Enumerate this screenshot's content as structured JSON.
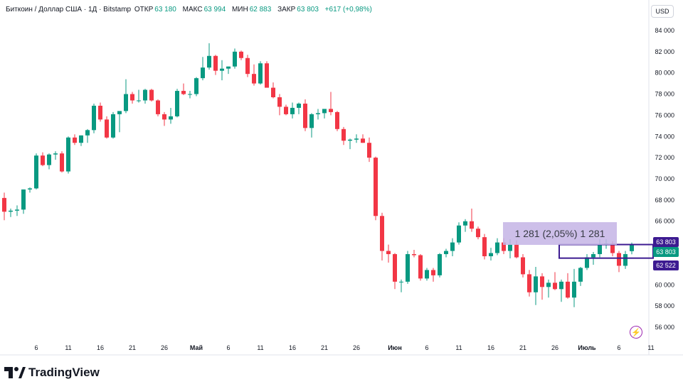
{
  "header": {
    "symbol": "Биткоин / Доллар США · 1Д · Bitstamp",
    "open_label": "ОТКР",
    "open_value": "63 180",
    "high_label": "МАКС",
    "high_value": "63 994",
    "low_label": "МИН",
    "low_value": "62 883",
    "close_label": "ЗАКР",
    "close_value": "63 803",
    "change": "+617 (+0,98%)"
  },
  "currency_button": "USD",
  "price_tags": {
    "last_price": "63 803",
    "last_price_2": "63 803",
    "range_low": "62 522"
  },
  "measure_label": "1 281 (2,05%) 1 281",
  "logo_text": "TradingView",
  "colors": {
    "up": "#089981",
    "down": "#f23645",
    "measure": "#c5b5e6",
    "range": "#3d1b91",
    "tag": "#3d1b91"
  },
  "icons": [
    "lightning-icon",
    "tradingview-logo-icon"
  ],
  "chart_data": {
    "type": "candlestick",
    "ylim": [
      55000,
      85000
    ],
    "y_ticks": [
      56000,
      58000,
      60000,
      62000,
      64000,
      66000,
      68000,
      70000,
      72000,
      74000,
      76000,
      78000,
      80000,
      82000,
      84000
    ],
    "y_tick_labels": [
      "56 000",
      "58 000",
      "60 000",
      "62 000",
      "64 000",
      "66 000",
      "68 000",
      "70 000",
      "72 000",
      "74 000",
      "76 000",
      "78 000",
      "80 000",
      "82 000",
      "84 000"
    ],
    "x_ticks": [
      {
        "day": 5,
        "label": "6"
      },
      {
        "day": 10,
        "label": "11"
      },
      {
        "day": 15,
        "label": "16"
      },
      {
        "day": 20,
        "label": "21"
      },
      {
        "day": 25,
        "label": "26"
      },
      {
        "day": 30,
        "label": "Май"
      },
      {
        "day": 35,
        "label": "6"
      },
      {
        "day": 40,
        "label": "11"
      },
      {
        "day": 45,
        "label": "16"
      },
      {
        "day": 50,
        "label": "21"
      },
      {
        "day": 55,
        "label": "26"
      },
      {
        "day": 61,
        "label": "Июн"
      },
      {
        "day": 66,
        "label": "6"
      },
      {
        "day": 71,
        "label": "11"
      },
      {
        "day": 76,
        "label": "16"
      },
      {
        "day": 81,
        "label": "21"
      },
      {
        "day": 86,
        "label": "26"
      },
      {
        "day": 91,
        "label": "Июль"
      },
      {
        "day": 96,
        "label": "6"
      },
      {
        "day": 101,
        "label": "11"
      }
    ],
    "candles": [
      {
        "o": 68200,
        "h": 68700,
        "l": 66100,
        "c": 66900
      },
      {
        "o": 66900,
        "h": 67200,
        "l": 66400,
        "c": 67000
      },
      {
        "o": 67000,
        "h": 67500,
        "l": 66500,
        "c": 67100
      },
      {
        "o": 67100,
        "h": 69000,
        "l": 66700,
        "c": 69000
      },
      {
        "o": 69000,
        "h": 69200,
        "l": 68700,
        "c": 69100
      },
      {
        "o": 69100,
        "h": 72400,
        "l": 69000,
        "c": 72200
      },
      {
        "o": 72200,
        "h": 72500,
        "l": 71200,
        "c": 71300
      },
      {
        "o": 71300,
        "h": 72400,
        "l": 70900,
        "c": 72300
      },
      {
        "o": 72300,
        "h": 72600,
        "l": 71800,
        "c": 72400
      },
      {
        "o": 72400,
        "h": 72600,
        "l": 70600,
        "c": 70700
      },
      {
        "o": 70700,
        "h": 74000,
        "l": 70500,
        "c": 73900
      },
      {
        "o": 73900,
        "h": 74200,
        "l": 73200,
        "c": 73400
      },
      {
        "o": 73400,
        "h": 74100,
        "l": 73100,
        "c": 74100
      },
      {
        "o": 74100,
        "h": 74700,
        "l": 73400,
        "c": 74600
      },
      {
        "o": 74600,
        "h": 77100,
        "l": 74300,
        "c": 76900
      },
      {
        "o": 76900,
        "h": 77200,
        "l": 75400,
        "c": 75600
      },
      {
        "o": 75600,
        "h": 75900,
        "l": 73800,
        "c": 73900
      },
      {
        "o": 73900,
        "h": 76300,
        "l": 73800,
        "c": 76100
      },
      {
        "o": 76100,
        "h": 76300,
        "l": 74400,
        "c": 76400
      },
      {
        "o": 76400,
        "h": 79400,
        "l": 76200,
        "c": 78000
      },
      {
        "o": 78000,
        "h": 78200,
        "l": 77100,
        "c": 77400
      },
      {
        "o": 77400,
        "h": 78400,
        "l": 77200,
        "c": 77400
      },
      {
        "o": 77400,
        "h": 78500,
        "l": 77100,
        "c": 78400
      },
      {
        "o": 78400,
        "h": 78500,
        "l": 77300,
        "c": 77400
      },
      {
        "o": 77400,
        "h": 77500,
        "l": 75900,
        "c": 76100
      },
      {
        "o": 76100,
        "h": 76300,
        "l": 75000,
        "c": 75600
      },
      {
        "o": 75600,
        "h": 76700,
        "l": 75200,
        "c": 75900
      },
      {
        "o": 75900,
        "h": 78500,
        "l": 75800,
        "c": 78300
      },
      {
        "o": 78300,
        "h": 79000,
        "l": 77900,
        "c": 78000
      },
      {
        "o": 78000,
        "h": 78300,
        "l": 77600,
        "c": 78000
      },
      {
        "o": 78000,
        "h": 79600,
        "l": 77800,
        "c": 79500
      },
      {
        "o": 79500,
        "h": 81500,
        "l": 79300,
        "c": 80500
      },
      {
        "o": 80500,
        "h": 82800,
        "l": 80300,
        "c": 81600
      },
      {
        "o": 81600,
        "h": 81700,
        "l": 79800,
        "c": 80200
      },
      {
        "o": 80200,
        "h": 81200,
        "l": 79300,
        "c": 80400
      },
      {
        "o": 80400,
        "h": 80600,
        "l": 79900,
        "c": 80600
      },
      {
        "o": 80600,
        "h": 82300,
        "l": 80400,
        "c": 82000
      },
      {
        "o": 82000,
        "h": 82100,
        "l": 81200,
        "c": 81400
      },
      {
        "o": 81400,
        "h": 81700,
        "l": 79600,
        "c": 79900
      },
      {
        "o": 79900,
        "h": 80800,
        "l": 78800,
        "c": 79000
      },
      {
        "o": 79000,
        "h": 81100,
        "l": 78900,
        "c": 80900
      },
      {
        "o": 80900,
        "h": 81100,
        "l": 78800,
        "c": 78600
      },
      {
        "o": 78600,
        "h": 79100,
        "l": 77600,
        "c": 77700
      },
      {
        "o": 77700,
        "h": 78000,
        "l": 76000,
        "c": 76800
      },
      {
        "o": 76800,
        "h": 77000,
        "l": 76000,
        "c": 76100
      },
      {
        "o": 76100,
        "h": 77200,
        "l": 75700,
        "c": 76700
      },
      {
        "o": 76700,
        "h": 77200,
        "l": 76100,
        "c": 77100
      },
      {
        "o": 77100,
        "h": 77500,
        "l": 74500,
        "c": 74800
      },
      {
        "o": 74800,
        "h": 76200,
        "l": 73900,
        "c": 76100
      },
      {
        "o": 76100,
        "h": 76600,
        "l": 75600,
        "c": 76200
      },
      {
        "o": 76200,
        "h": 76600,
        "l": 75700,
        "c": 76600
      },
      {
        "o": 76600,
        "h": 78200,
        "l": 76000,
        "c": 76300
      },
      {
        "o": 76300,
        "h": 76400,
        "l": 74500,
        "c": 74700
      },
      {
        "o": 74700,
        "h": 74900,
        "l": 73200,
        "c": 73600
      },
      {
        "o": 73600,
        "h": 73800,
        "l": 72800,
        "c": 73700
      },
      {
        "o": 73700,
        "h": 74200,
        "l": 73400,
        "c": 73800
      },
      {
        "o": 73800,
        "h": 74200,
        "l": 73400,
        "c": 73400
      },
      {
        "o": 73400,
        "h": 73900,
        "l": 71600,
        "c": 72000
      },
      {
        "o": 72000,
        "h": 72100,
        "l": 66100,
        "c": 66500
      },
      {
        "o": 66500,
        "h": 66800,
        "l": 62300,
        "c": 63200
      },
      {
        "o": 63200,
        "h": 63800,
        "l": 62100,
        "c": 62900
      },
      {
        "o": 62900,
        "h": 63000,
        "l": 59600,
        "c": 60300
      },
      {
        "o": 60300,
        "h": 60500,
        "l": 59300,
        "c": 60300
      },
      {
        "o": 60300,
        "h": 63200,
        "l": 60100,
        "c": 62900
      },
      {
        "o": 62900,
        "h": 63300,
        "l": 62600,
        "c": 62800
      },
      {
        "o": 62800,
        "h": 62900,
        "l": 60400,
        "c": 60600
      },
      {
        "o": 60600,
        "h": 61600,
        "l": 60400,
        "c": 61400
      },
      {
        "o": 61400,
        "h": 61600,
        "l": 60300,
        "c": 60900
      },
      {
        "o": 60900,
        "h": 63000,
        "l": 60700,
        "c": 62900
      },
      {
        "o": 62900,
        "h": 63400,
        "l": 62600,
        "c": 63200
      },
      {
        "o": 63200,
        "h": 64400,
        "l": 62700,
        "c": 64000
      },
      {
        "o": 64000,
        "h": 65900,
        "l": 63800,
        "c": 65600
      },
      {
        "o": 65600,
        "h": 66200,
        "l": 65000,
        "c": 66000
      },
      {
        "o": 66000,
        "h": 67200,
        "l": 65000,
        "c": 65300
      },
      {
        "o": 65300,
        "h": 65500,
        "l": 64300,
        "c": 64500
      },
      {
        "o": 64500,
        "h": 64800,
        "l": 62400,
        "c": 62700
      },
      {
        "o": 62700,
        "h": 63500,
        "l": 62300,
        "c": 63000
      },
      {
        "o": 63000,
        "h": 64400,
        "l": 62800,
        "c": 64000
      },
      {
        "o": 64000,
        "h": 64400,
        "l": 62900,
        "c": 63200
      },
      {
        "o": 63200,
        "h": 64300,
        "l": 62500,
        "c": 63800
      },
      {
        "o": 63800,
        "h": 64200,
        "l": 62500,
        "c": 62600
      },
      {
        "o": 62600,
        "h": 62900,
        "l": 60700,
        "c": 61000
      },
      {
        "o": 61000,
        "h": 61400,
        "l": 58900,
        "c": 59300
      },
      {
        "o": 59300,
        "h": 61700,
        "l": 58100,
        "c": 60800
      },
      {
        "o": 60800,
        "h": 61100,
        "l": 58600,
        "c": 59800
      },
      {
        "o": 59800,
        "h": 60500,
        "l": 58800,
        "c": 60200
      },
      {
        "o": 60200,
        "h": 61200,
        "l": 59500,
        "c": 59600
      },
      {
        "o": 59600,
        "h": 60500,
        "l": 58400,
        "c": 60300
      },
      {
        "o": 60300,
        "h": 61100,
        "l": 58700,
        "c": 58800
      },
      {
        "o": 58800,
        "h": 61500,
        "l": 57900,
        "c": 60300
      },
      {
        "o": 60300,
        "h": 61700,
        "l": 59900,
        "c": 61600
      },
      {
        "o": 61600,
        "h": 62900,
        "l": 61400,
        "c": 62600
      },
      {
        "o": 62600,
        "h": 63100,
        "l": 61900,
        "c": 62900
      },
      {
        "o": 62900,
        "h": 64300,
        "l": 62600,
        "c": 63800
      },
      {
        "o": 63800,
        "h": 64300,
        "l": 63400,
        "c": 63900
      },
      {
        "o": 63900,
        "h": 64100,
        "l": 62700,
        "c": 63000
      },
      {
        "o": 63000,
        "h": 63200,
        "l": 61200,
        "c": 61800
      },
      {
        "o": 61800,
        "h": 63200,
        "l": 61500,
        "c": 62900
      },
      {
        "o": 63180,
        "h": 63994,
        "l": 62883,
        "c": 63803
      }
    ]
  }
}
